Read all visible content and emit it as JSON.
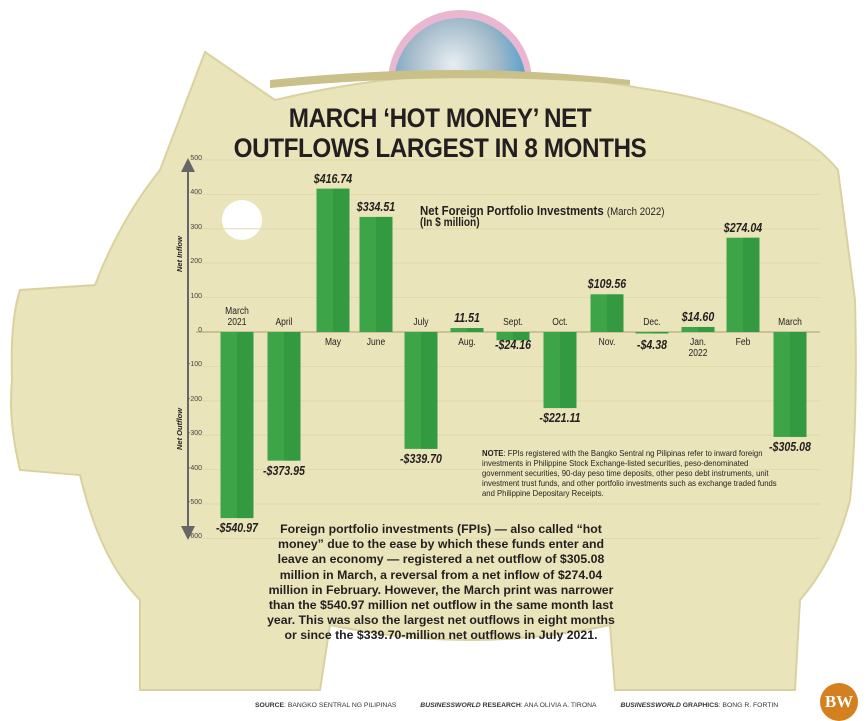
{
  "title": "MARCH ‘HOT MONEY’ NET OUTFLOWS LARGEST IN 8 MONTHS",
  "chart_data": {
    "type": "bar",
    "title": "Net Foreign Portfolio Investments",
    "title_period": "(March 2022)",
    "unit": "(In $ million)",
    "ylabel_positive": "Net Inflow",
    "ylabel_negative": "Net Outflow",
    "ylim": [
      -600,
      500
    ],
    "yticks": [
      500,
      400,
      300,
      200,
      100,
      0,
      -100,
      -200,
      -300,
      -400,
      -500,
      -600
    ],
    "grid": true,
    "categories": [
      "March 2021",
      "April",
      "May",
      "June",
      "July",
      "Aug.",
      "Sept.",
      "Oct.",
      "Nov.",
      "Dec.",
      "Jan. 2022",
      "Feb",
      "March"
    ],
    "values": [
      -540.97,
      -373.95,
      416.74,
      334.51,
      -339.7,
      11.51,
      -24.16,
      -221.11,
      109.56,
      -4.38,
      14.6,
      274.04,
      -305.08
    ],
    "data_labels": [
      "-$540.97",
      "-$373.95",
      "$416.74",
      "$334.51",
      "-$339.70",
      "11.51",
      "-$24.16",
      "-$221.11",
      "$109.56",
      "-$4.38",
      "$14.60",
      "$274.04",
      "-$305.08"
    ],
    "bar_color": "#3da448"
  },
  "note_label": "NOTE",
  "note": ": FPIs registered with the Bangko Sentral ng Pilipinas refer to inward foreign investments in Philippine Stock Exchange-listed securities, peso-denominated government securities, 90-day peso time deposits, other peso debt instruments, unit investment trust funds, and other portfolio investments such as exchange traded funds and Philippine Depositary Receipts.",
  "body": "Foreign portfolio investments (FPIs) — also called “hot money” due to the ease by which these funds enter and leave an economy — registered a net outflow of $305.08 million in March, a reversal from a net inflow of $274.04 million in February. However, the March print was narrower than the $540.97 million net outflow in the same month last year. This was also the largest net outflows in eight months or since the $339.70-million net outflows in July 2021.",
  "footer": {
    "source_label": "SOURCE",
    "source": ": BANGKO SENTRAL NG PILIPINAS",
    "research_brand": "BUSINESSWORLD",
    "research_label": " RESEARCH",
    "research": ": ANA OLIVIA A. TIRONA",
    "graphics_brand": "BUSINESSWORLD",
    "graphics_label": " GRAPHICS",
    "graphics": ": BONG R. FORTIN"
  },
  "logo": "BW",
  "colors": {
    "pig": "#e9e4b9",
    "bar": "#3da448",
    "logo": "#d4801e"
  }
}
